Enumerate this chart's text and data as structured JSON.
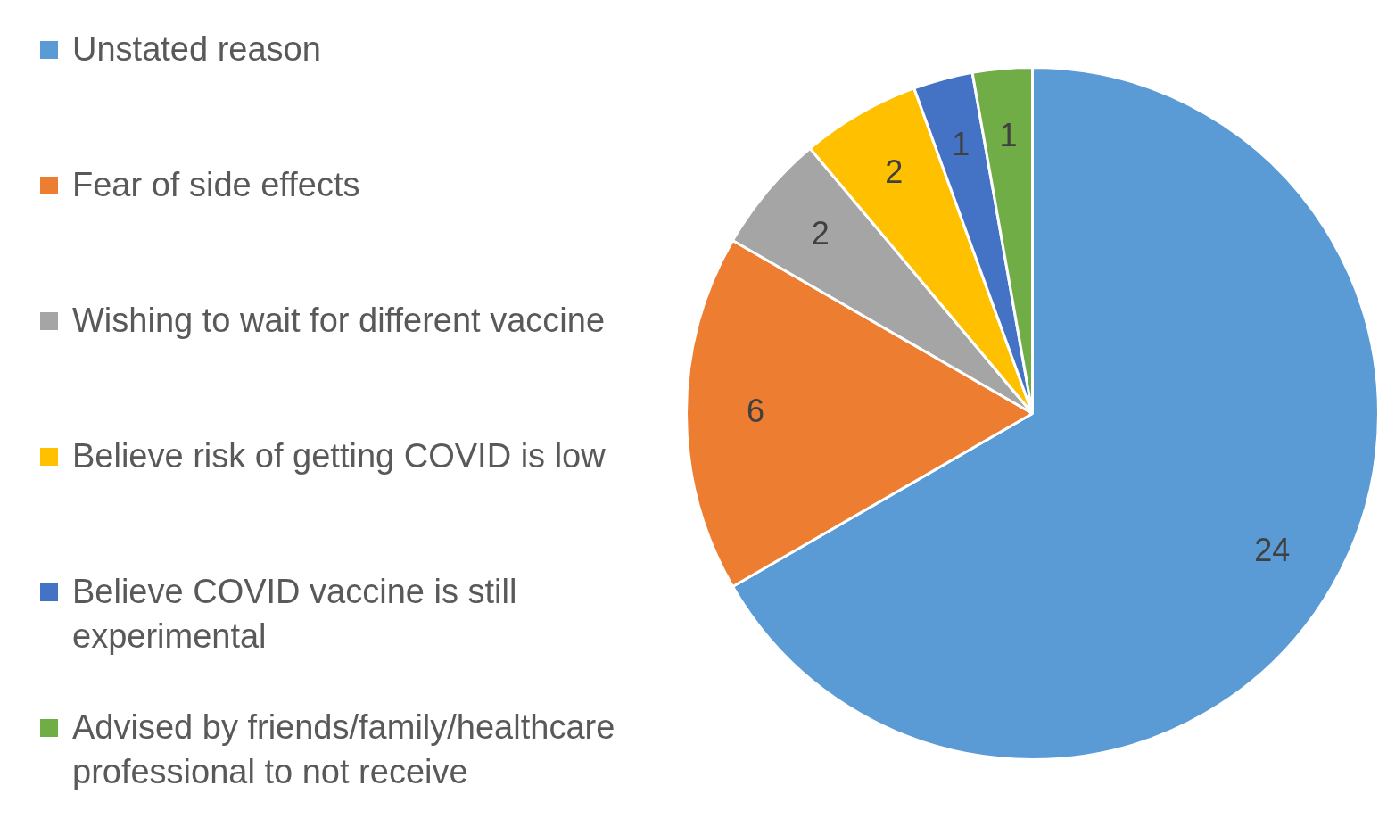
{
  "chart_data": {
    "type": "pie",
    "categories": [
      "Unstated reason",
      "Fear of side effects",
      "Wishing to wait for different vaccine",
      "Believe risk of getting COVID is low",
      "Believe COVID vaccine is still experimental",
      "Advised by friends/family/healthcare professional to not receive"
    ],
    "values": [
      24,
      6,
      2,
      2,
      1,
      1
    ],
    "colors": [
      "#5b9bd5",
      "#ed7d31",
      "#a5a5a5",
      "#ffc000",
      "#4472c4",
      "#70ad47"
    ],
    "data_labels": true,
    "legend": "left"
  }
}
